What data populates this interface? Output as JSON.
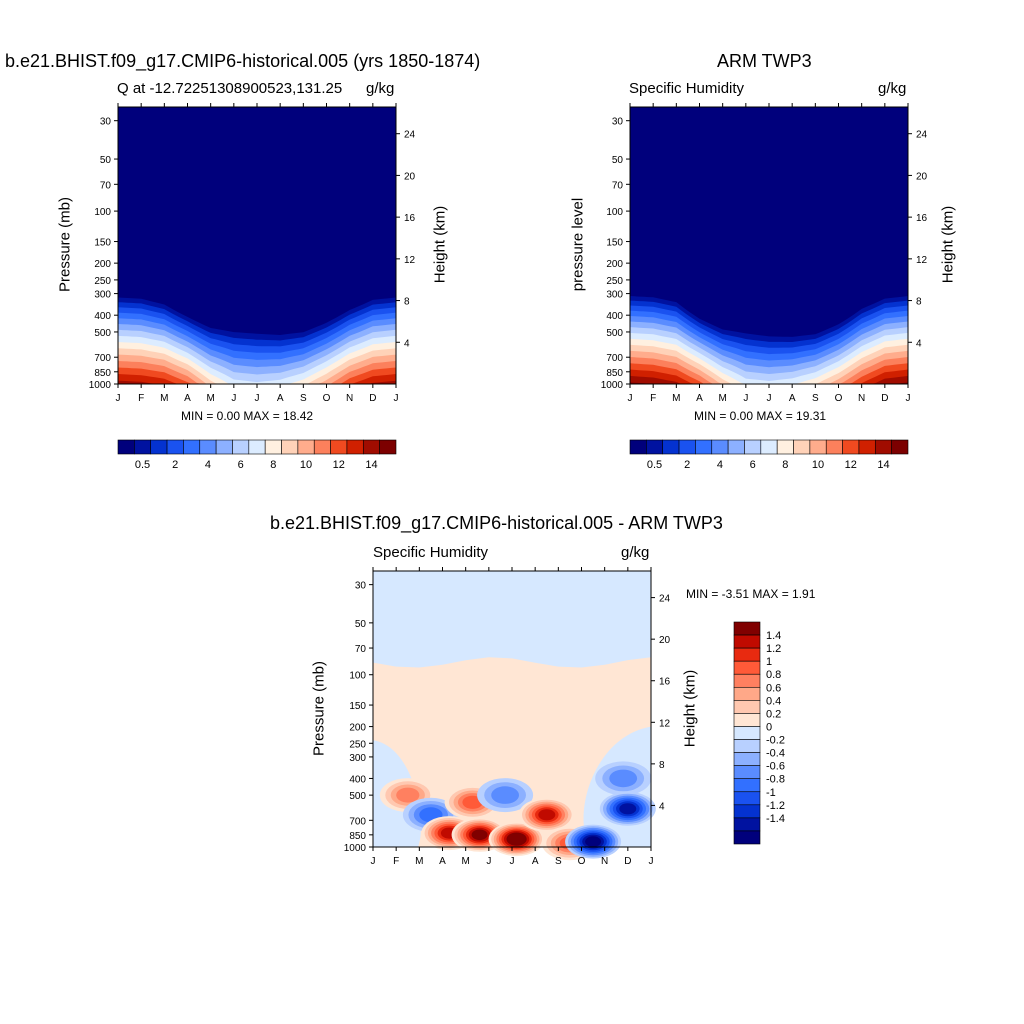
{
  "chart_data": [
    {
      "type": "heatmap",
      "title": "b.e21.BHIST.f09_g17.CMIP6-historical.005 (yrs 1850-1874)",
      "left_string": "Q at -12.72251308900523,131.25",
      "right_string": "g/kg",
      "ylabel": "Pressure (mb)",
      "ylabel_right": "Height (km)",
      "x_ticks": [
        "J",
        "F",
        "M",
        "A",
        "M",
        "J",
        "J",
        "A",
        "S",
        "O",
        "N",
        "D",
        "J"
      ],
      "y_ticks": [
        30,
        50,
        70,
        100,
        150,
        200,
        250,
        300,
        400,
        500,
        700,
        850,
        1000
      ],
      "y_ticks_right": [
        24,
        20,
        16,
        12,
        8,
        4
      ],
      "ylim": [
        1000,
        25
      ],
      "min_max_text": "MIN =   0.00 MAX =   18.42",
      "colorbar_labels": [
        "0.5",
        "2",
        "4",
        "6",
        "8",
        "10",
        "12",
        "14"
      ],
      "months": [
        1,
        2,
        3,
        4,
        5,
        6,
        7,
        8,
        9,
        10,
        11,
        12
      ],
      "surface_q": [
        18.4,
        18.2,
        17.6,
        15.8,
        12.5,
        10.2,
        9.8,
        10.2,
        11.5,
        13.8,
        16.5,
        18.0
      ],
      "moist_top_mb": [
        300,
        305,
        330,
        390,
        450,
        470,
        480,
        490,
        475,
        420,
        355,
        310
      ]
    },
    {
      "type": "heatmap",
      "title": "ARM TWP3",
      "left_string": "Specific Humidity",
      "right_string": "g/kg",
      "ylabel": "pressure level",
      "ylabel_right": "Height (km)",
      "x_ticks": [
        "J",
        "F",
        "M",
        "A",
        "M",
        "J",
        "J",
        "A",
        "S",
        "O",
        "N",
        "D",
        "J"
      ],
      "y_ticks": [
        30,
        50,
        70,
        100,
        150,
        200,
        250,
        300,
        400,
        500,
        700,
        850,
        1000
      ],
      "y_ticks_right": [
        24,
        20,
        16,
        12,
        8,
        4
      ],
      "ylim": [
        1000,
        25
      ],
      "min_max_text": "MIN =   0.00 MAX =   19.31",
      "colorbar_labels": [
        "0.5",
        "2",
        "4",
        "6",
        "8",
        "10",
        "12",
        "14"
      ],
      "months": [
        1,
        2,
        3,
        4,
        5,
        6,
        7,
        8,
        9,
        10,
        11,
        12
      ],
      "surface_q": [
        19.3,
        19.0,
        18.2,
        16.0,
        12.8,
        10.4,
        10.0,
        10.5,
        11.8,
        14.0,
        16.8,
        18.8
      ],
      "moist_top_mb": [
        295,
        300,
        320,
        400,
        460,
        480,
        500,
        505,
        490,
        430,
        350,
        305
      ]
    },
    {
      "type": "heatmap",
      "title": "b.e21.BHIST.f09_g17.CMIP6-historical.005 - ARM TWP3",
      "left_string": "Specific Humidity",
      "right_string": "g/kg",
      "ylabel": "Pressure (mb)",
      "ylabel_right": "Height (km)",
      "x_ticks": [
        "J",
        "F",
        "M",
        "A",
        "M",
        "J",
        "J",
        "A",
        "S",
        "O",
        "N",
        "D",
        "J"
      ],
      "y_ticks": [
        30,
        50,
        70,
        100,
        150,
        200,
        250,
        300,
        400,
        500,
        700,
        850,
        1000
      ],
      "y_ticks_right": [
        24,
        20,
        16,
        12,
        8,
        4
      ],
      "ylim": [
        1000,
        25
      ],
      "min_max_text": "MIN =  -3.51 MAX =   1.91",
      "colorbar_labels": [
        "1.4",
        "1.2",
        "1",
        "0.8",
        "0.6",
        "0.4",
        "0.2",
        "0",
        "-0.2",
        "-0.4",
        "-0.6",
        "-0.8",
        "-1",
        "-1.2",
        "-1.4"
      ],
      "anomalies": [
        {
          "month": 1.5,
          "p": 500,
          "v": 0.6
        },
        {
          "month": 2.5,
          "p": 650,
          "v": -0.6
        },
        {
          "month": 3.3,
          "p": 830,
          "v": 1.2
        },
        {
          "month": 4.3,
          "p": 550,
          "v": 0.8
        },
        {
          "month": 4.6,
          "p": 850,
          "v": 1.4
        },
        {
          "month": 5.7,
          "p": 500,
          "v": -0.4
        },
        {
          "month": 6.2,
          "p": 900,
          "v": 1.5
        },
        {
          "month": 7.5,
          "p": 650,
          "v": 1.2
        },
        {
          "month": 8.5,
          "p": 950,
          "v": 0.8
        },
        {
          "month": 9.5,
          "p": 930,
          "v": -1.4
        },
        {
          "month": 10.8,
          "p": 400,
          "v": -0.4
        },
        {
          "month": 11.0,
          "p": 600,
          "v": -1.2
        }
      ]
    }
  ],
  "colors": {
    "moist_scale": [
      "#00007c",
      "#0012a0",
      "#0432d0",
      "#1a52f0",
      "#3270ff",
      "#5a8cff",
      "#8cb0ff",
      "#b8d0ff",
      "#dcecff",
      "#fff0e0",
      "#ffd2b8",
      "#ffac8c",
      "#fc805c",
      "#f04a20",
      "#d02000",
      "#a00c00",
      "#7c0000"
    ],
    "diff_scale": [
      "#00007c",
      "#0012a0",
      "#0432d0",
      "#1a52f0",
      "#3270ff",
      "#5a8cff",
      "#8cb0ff",
      "#b8d0ff",
      "#d6e8ff",
      "#ffe6d4",
      "#ffc8b0",
      "#ffa888",
      "#ff8060",
      "#ff5a38",
      "#e82a10",
      "#c00a00",
      "#800000"
    ]
  }
}
